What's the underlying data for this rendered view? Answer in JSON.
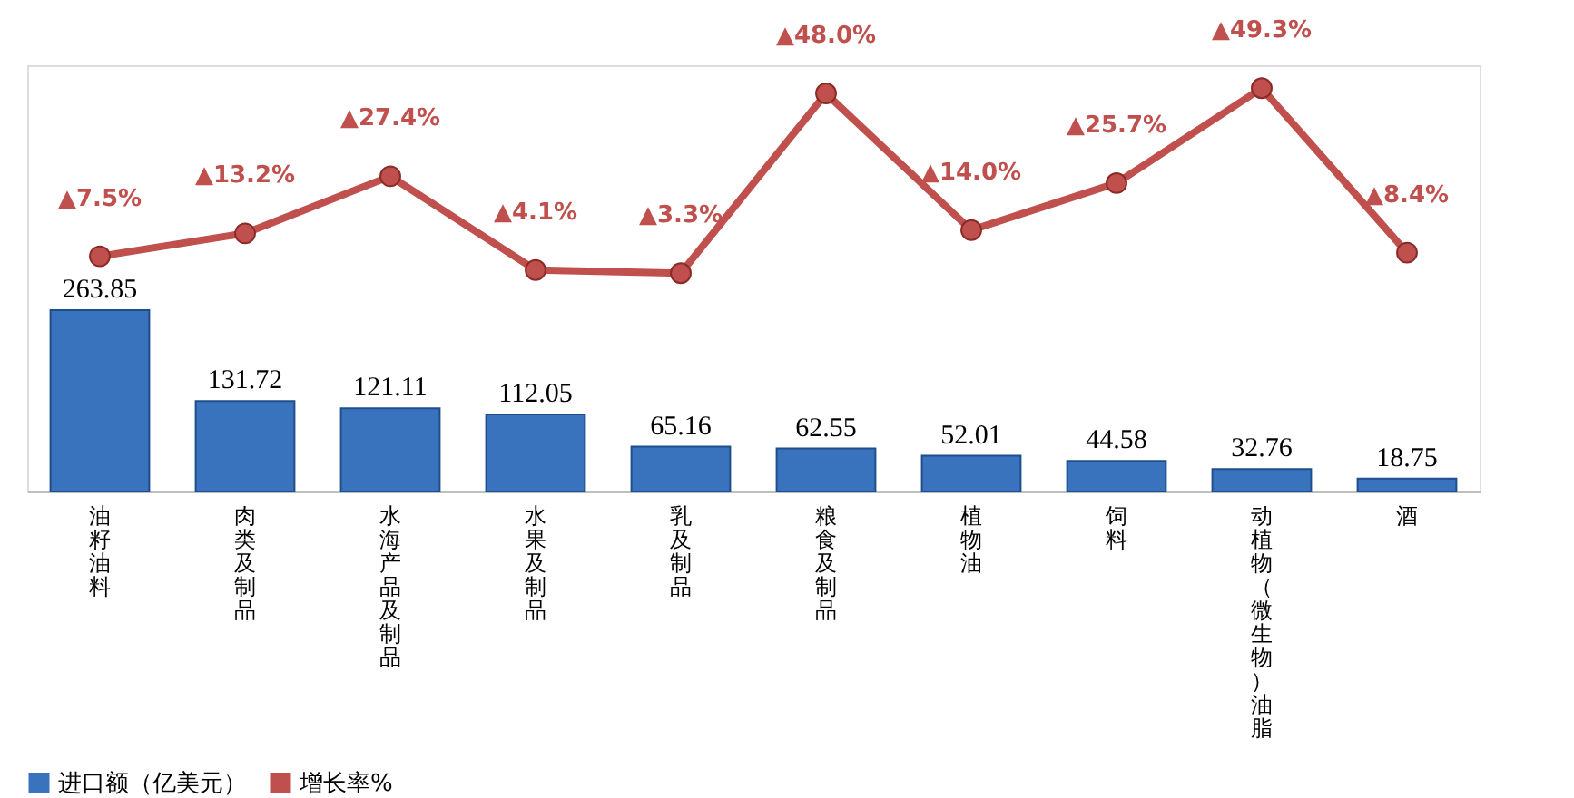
{
  "chart_data": {
    "type": "bar",
    "categories": [
      "油籽油料",
      "肉类及制品",
      "水海产品及制品",
      "水果及制品",
      "乳及制品",
      "粮食及制品",
      "植物油",
      "饲料",
      "动植物（微生物）油脂",
      "酒"
    ],
    "series": [
      {
        "name": "进口额（亿美元）",
        "color": "#3a73bd",
        "values": [
          263.85,
          131.72,
          121.11,
          112.05,
          65.16,
          62.55,
          52.01,
          44.58,
          32.76,
          18.75
        ],
        "value_labels": [
          "263.85",
          "131.72",
          "121.11",
          "112.05",
          "65.16",
          "62.55",
          "52.01",
          "44.58",
          "32.76",
          "18.75"
        ]
      },
      {
        "name": "增长率%",
        "type": "line",
        "axis": "y2",
        "color": "#c0504d",
        "marker": "circle",
        "line_style": "solid",
        "values": [
          7.5,
          13.2,
          27.4,
          4.1,
          3.3,
          48.0,
          14.0,
          25.7,
          49.3,
          8.4
        ],
        "value_labels": [
          "▲7.5%",
          "▲13.2%",
          "▲27.4%",
          "▲4.1%",
          "▲3.3%",
          "▲48.0%",
          "▲14.0%",
          "▲25.7%",
          "▲49.3%",
          "▲8.4%"
        ]
      }
    ],
    "ylim": [
      0,
      620
    ],
    "y2lim": [
      -51,
      55
    ],
    "legend": "bottom",
    "grid": false
  }
}
